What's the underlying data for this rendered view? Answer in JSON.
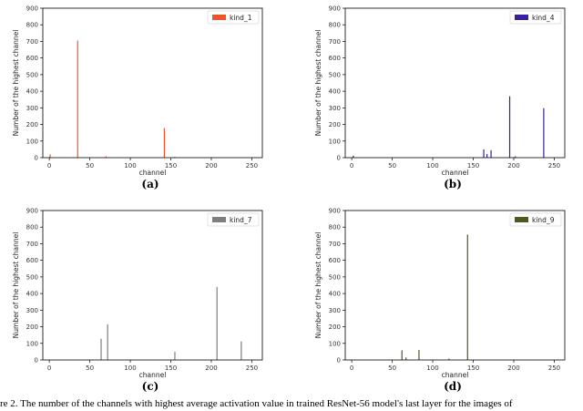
{
  "caption": "re 2. The number of the channels with highest average activation value in trained ResNet-56 model's last layer for the images of",
  "chart_data": [
    {
      "type": "bar",
      "panel_label": "(a)",
      "xlabel": "channel",
      "ylabel": "Number of the highest channel",
      "xlim": [
        -8,
        263
      ],
      "ylim": [
        0,
        900
      ],
      "xticks": [
        0,
        50,
        100,
        150,
        200,
        250
      ],
      "yticks": [
        0,
        100,
        200,
        300,
        400,
        500,
        600,
        700,
        800,
        900
      ],
      "legend_position": "top-right",
      "series": [
        {
          "name": "kind_1",
          "color": "#f0532a",
          "x": [
            1,
            35,
            70,
            142,
            155
          ],
          "values": [
            20,
            705,
            8,
            178,
            5
          ]
        }
      ]
    },
    {
      "type": "bar",
      "panel_label": "(b)",
      "xlabel": "channel",
      "ylabel": "Number of the highest channel",
      "xlim": [
        -8,
        263
      ],
      "ylim": [
        0,
        900
      ],
      "xticks": [
        0,
        50,
        100,
        150,
        200,
        250
      ],
      "yticks": [
        0,
        100,
        200,
        300,
        400,
        500,
        600,
        700,
        800,
        900
      ],
      "legend_position": "top-right",
      "series": [
        {
          "name": "kind_4",
          "color": "#3a1fa0",
          "x": [
            2,
            163,
            167,
            172,
            195,
            202,
            237
          ],
          "values": [
            12,
            50,
            22,
            45,
            370,
            8,
            298
          ]
        }
      ]
    },
    {
      "type": "bar",
      "panel_label": "(c)",
      "xlabel": "channel",
      "ylabel": "Number of the highest channel",
      "xlim": [
        -8,
        263
      ],
      "ylim": [
        0,
        900
      ],
      "xticks": [
        0,
        50,
        100,
        150,
        200,
        250
      ],
      "yticks": [
        0,
        100,
        200,
        300,
        400,
        500,
        600,
        700,
        800,
        900
      ],
      "legend_position": "top-right",
      "series": [
        {
          "name": "kind_7",
          "color": "#7f7f7f",
          "x": [
            64,
            72,
            155,
            207,
            237
          ],
          "values": [
            128,
            215,
            50,
            440,
            112
          ]
        }
      ]
    },
    {
      "type": "bar",
      "panel_label": "(d)",
      "xlabel": "channel",
      "ylabel": "Number of the highest channel",
      "xlim": [
        -8,
        263
      ],
      "ylim": [
        0,
        900
      ],
      "xticks": [
        0,
        50,
        100,
        150,
        200,
        250
      ],
      "yticks": [
        0,
        100,
        200,
        300,
        400,
        500,
        600,
        700,
        800,
        900
      ],
      "legend_position": "top-right",
      "series": [
        {
          "name": "kind_9",
          "color": "#4a5b22",
          "x": [
            62,
            67,
            83,
            120,
            143
          ],
          "values": [
            58,
            15,
            60,
            8,
            755
          ]
        }
      ]
    }
  ]
}
